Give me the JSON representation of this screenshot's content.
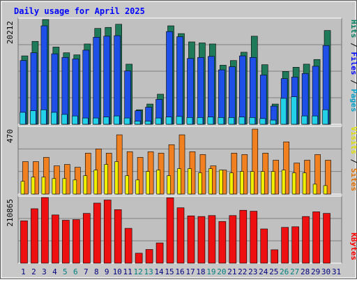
{
  "chart_data": {
    "title": "Daily usage for April 2025",
    "days": [
      "1",
      "2",
      "3",
      "4",
      "5",
      "6",
      "7",
      "8",
      "9",
      "10",
      "11",
      "12",
      "13",
      "14",
      "15",
      "16",
      "17",
      "18",
      "19",
      "20",
      "21",
      "22",
      "23",
      "24",
      "25",
      "26",
      "27",
      "28",
      "29",
      "30",
      "31"
    ],
    "weekend_days": [
      "5",
      "6",
      "12",
      "13",
      "19",
      "20",
      "26",
      "27"
    ],
    "colors": {
      "background": "#c0c0c0",
      "title": "#0000ff",
      "hits": "#1f7a5a",
      "files": "#1e4fe6",
      "pages": "#22d0e8",
      "visits": "#f0f000",
      "sites": "#f08020",
      "kbytes": "#ee1010",
      "weekend_label": "#008080",
      "weekday_label": "#000080"
    },
    "panels": [
      {
        "type": "bar",
        "scale_label": "20212",
        "ymax": 20212,
        "legend": [
          {
            "text": "Pages",
            "color": "#00a0c8"
          },
          {
            "text": " / ",
            "color": "#000000"
          },
          {
            "text": "Files",
            "color": "#0000ff"
          },
          {
            "text": " / ",
            "color": "#000000"
          },
          {
            "text": "Hits",
            "color": "#008060"
          }
        ],
        "series": [
          {
            "name": "Hits",
            "values": [
              13200,
              16000,
              20212,
              14900,
              13800,
              13400,
              15500,
              18500,
              18700,
              19300,
              11600,
              2800,
              3900,
              5800,
              19000,
              17500,
              15900,
              15700,
              15500,
              11400,
              12300,
              13900,
              17000,
              11500,
              3900,
              10200,
              11000,
              11600,
              12500,
              18100,
              0
            ]
          },
          {
            "name": "Files",
            "values": [
              12300,
              13800,
              19000,
              13600,
              12900,
              12600,
              14300,
              16800,
              17000,
              17100,
              10300,
              2600,
              3300,
              4800,
              17900,
              16900,
              12700,
              12900,
              13100,
              10500,
              11100,
              13200,
              12900,
              9500,
              3500,
              8800,
              9100,
              9800,
              11200,
              15200,
              0
            ]
          },
          {
            "name": "Pages",
            "values": [
              2300,
              2600,
              2800,
              2300,
              1900,
              1600,
              1200,
              1200,
              1400,
              1600,
              1200,
              600,
              600,
              1200,
              1400,
              1500,
              1300,
              1300,
              1400,
              1300,
              1300,
              1400,
              1300,
              1100,
              800,
              5000,
              5300,
              1600,
              1600,
              2800,
              0
            ]
          }
        ]
      },
      {
        "type": "bar",
        "scale_label": "470",
        "ymax": 470,
        "legend": [
          {
            "text": "Sites",
            "color": "#e07000"
          },
          {
            "text": " / ",
            "color": "#000000"
          },
          {
            "text": "Visits",
            "color": "#e0e000"
          }
        ],
        "series": [
          {
            "name": "Sites",
            "values": [
              230,
              230,
              260,
              200,
              210,
              190,
              290,
              320,
              290,
              420,
              300,
              260,
              300,
              290,
              350,
              420,
              300,
              280,
              200,
              170,
              290,
              280,
              460,
              290,
              240,
              370,
              220,
              240,
              280,
              240,
              0
            ]
          },
          {
            "name": "Visits",
            "values": [
              90,
              120,
              120,
              110,
              110,
              100,
              130,
              170,
              210,
              230,
              130,
              100,
              160,
              170,
              130,
              180,
              180,
              150,
              180,
              170,
              150,
              160,
              160,
              160,
              160,
              170,
              150,
              150,
              70,
              60,
              0
            ]
          }
        ]
      },
      {
        "type": "bar",
        "scale_label": "210865",
        "ymax": 210865,
        "legend": [
          {
            "text": "KBytes",
            "color": "#ff0000"
          }
        ],
        "series": [
          {
            "name": "KBytes",
            "values": [
              136000,
              175000,
              210865,
              155000,
              138000,
              140000,
              160000,
              193000,
              203000,
              172000,
              112000,
              32000,
              44000,
              65000,
              210000,
              178000,
              152000,
              150000,
              153000,
              134000,
              153000,
              170000,
              167000,
              110000,
              43000,
              115000,
              117000,
              150000,
              165000,
              160000,
              0
            ]
          }
        ]
      }
    ]
  }
}
